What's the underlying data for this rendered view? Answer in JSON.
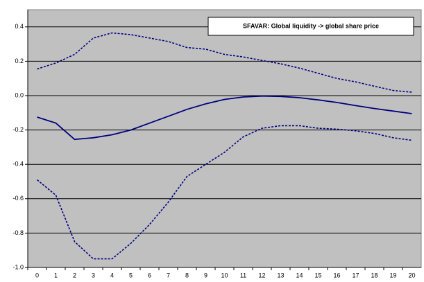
{
  "chart_data": {
    "type": "line",
    "title": "SFAVAR: Global liquidity -> global share price",
    "categories": [
      "0",
      "1",
      "2",
      "3",
      "4",
      "5",
      "6",
      "7",
      "8",
      "9",
      "10",
      "11",
      "12",
      "13",
      "14",
      "15",
      "16",
      "17",
      "18",
      "19",
      "20"
    ],
    "series": [
      {
        "color": "#000080",
        "line_style": "solid",
        "values": [
          -0.125,
          -0.16,
          -0.255,
          -0.245,
          -0.228,
          -0.2,
          -0.16,
          -0.12,
          -0.08,
          -0.048,
          -0.022,
          -0.008,
          -0.003,
          -0.005,
          -0.012,
          -0.025,
          -0.04,
          -0.058,
          -0.075,
          -0.09,
          -0.105
        ]
      },
      {
        "color": "#000080",
        "line_style": "dotted",
        "values": [
          0.155,
          0.19,
          0.24,
          0.335,
          0.365,
          0.355,
          0.335,
          0.315,
          0.28,
          0.27,
          0.24,
          0.225,
          0.205,
          0.185,
          0.16,
          0.13,
          0.1,
          0.08,
          0.055,
          0.03,
          0.02
        ]
      },
      {
        "color": "#000080",
        "line_style": "dotted",
        "values": [
          -0.49,
          -0.58,
          -0.85,
          -0.95,
          -0.95,
          -0.86,
          -0.75,
          -0.62,
          -0.47,
          -0.4,
          -0.33,
          -0.24,
          -0.19,
          -0.175,
          -0.175,
          -0.19,
          -0.195,
          -0.205,
          -0.22,
          -0.245,
          -0.26
        ]
      }
    ],
    "ylim": [
      -1,
      0.5
    ],
    "yticks": [
      {
        "value": -1,
        "label": "-1.0"
      },
      -0.8,
      -0.6,
      -0.4,
      -0.2,
      {
        "value": 0,
        "label": "0.0"
      },
      0.2,
      0.4
    ],
    "grid": true,
    "plot_background": "#c0c0c0"
  }
}
